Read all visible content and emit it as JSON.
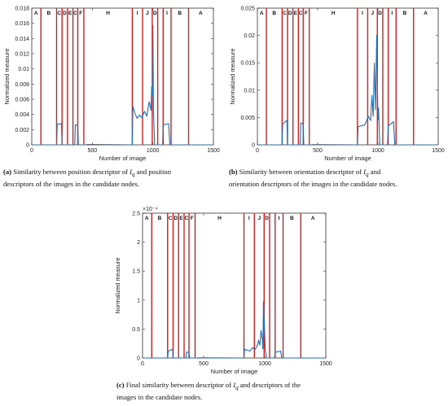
{
  "chart_data": [
    {
      "type": "line",
      "xlabel": "Number of image",
      "ylabel": "Normalized measure",
      "xlim": [
        0,
        1500
      ],
      "ylim": [
        0,
        0.018
      ],
      "x_ticks": [
        "0",
        "500",
        "1000",
        "1500"
      ],
      "y_ticks": [
        "0",
        "0.002",
        "0.004",
        "0.006",
        "0.008",
        "0.01",
        "0.012",
        "0.014",
        "0.016",
        "0.018"
      ],
      "y_exponent": "",
      "boundaries": [
        75,
        205,
        250,
        295,
        340,
        380,
        430,
        830,
        915,
        995,
        1040,
        1085,
        1150,
        1295
      ],
      "segment_labels": [
        "A",
        "B",
        "C",
        "D",
        "E",
        "C",
        "F",
        "H",
        "I",
        "J",
        "D",
        "I",
        "B",
        "A"
      ],
      "segment_centers": [
        35,
        140,
        227,
        272,
        317,
        360,
        405,
        630,
        872,
        955,
        1017,
        1117,
        1222,
        1395
      ],
      "series": [
        {
          "color": "#1f6fb8",
          "x": [
            0,
            205,
            210,
            245,
            250,
            355,
            360,
            380,
            385,
            445,
            460,
            830,
            835,
            850,
            870,
            890,
            910,
            930,
            950,
            970,
            985,
            990,
            995,
            1000,
            1005,
            1015,
            1040,
            1080,
            1085,
            1130,
            1140,
            1200,
            1500
          ],
          "y": [
            0,
            0,
            0.0027,
            0.0028,
            0,
            0,
            0.0026,
            0.0026,
            0,
            0,
            5e-05,
            0,
            0.0051,
            0.0042,
            0.0035,
            0.0039,
            0.0036,
            0.0044,
            0.0038,
            0.0057,
            0.0045,
            0.0077,
            0.0065,
            0.0158,
            0.0045,
            0,
            0,
            0,
            0.0026,
            0.0028,
            0,
            0,
            0
          ]
        }
      ]
    },
    {
      "type": "line",
      "xlabel": "Number of image",
      "ylabel": "Normalized measure",
      "xlim": [
        0,
        1500
      ],
      "ylim": [
        0,
        0.025
      ],
      "x_ticks": [
        "0",
        "500",
        "1000",
        "1500"
      ],
      "y_ticks": [
        "0",
        "0.005",
        "0.01",
        "0.015",
        "0.02",
        "0.025"
      ],
      "y_exponent": "",
      "boundaries": [
        75,
        205,
        250,
        295,
        340,
        380,
        430,
        830,
        915,
        995,
        1040,
        1085,
        1150,
        1295
      ],
      "segment_labels": [
        "A",
        "B",
        "C",
        "D",
        "E",
        "C",
        "F",
        "H",
        "I",
        "J",
        "D",
        "I",
        "B",
        "A"
      ],
      "segment_centers": [
        35,
        140,
        227,
        272,
        317,
        360,
        405,
        630,
        872,
        955,
        1017,
        1117,
        1222,
        1395
      ],
      "series": [
        {
          "color": "#1f6fb8",
          "x": [
            0,
            205,
            210,
            245,
            250,
            355,
            360,
            380,
            385,
            445,
            460,
            830,
            835,
            860,
            890,
            920,
            940,
            950,
            960,
            970,
            980,
            990,
            1000,
            1005,
            1015,
            1040,
            1080,
            1085,
            1130,
            1140,
            1200,
            1500
          ],
          "y": [
            0,
            0,
            0.0038,
            0.0045,
            0,
            0,
            0.004,
            0.0038,
            0,
            0,
            5e-05,
            0,
            0.0033,
            0.0035,
            0.0036,
            0.0052,
            0.0045,
            0.0091,
            0.0052,
            0.015,
            0.0064,
            0.0201,
            0.0045,
            0.0068,
            0,
            0,
            0,
            0.0035,
            0.0042,
            0,
            0,
            0
          ]
        }
      ]
    },
    {
      "type": "line",
      "xlabel": "Number of image",
      "ylabel": "Normalized measure",
      "xlim": [
        0,
        1500
      ],
      "ylim": [
        0,
        2.5
      ],
      "x_ticks": [
        "0",
        "500",
        "1000",
        "1500"
      ],
      "y_ticks": [
        "0",
        "0.5",
        "1",
        "1.5",
        "2",
        "2.5"
      ],
      "y_exponent": "×10⁻⁴",
      "boundaries": [
        75,
        205,
        250,
        295,
        340,
        380,
        430,
        830,
        915,
        995,
        1040,
        1085,
        1150,
        1295
      ],
      "segment_labels": [
        "A",
        "B",
        "C",
        "D",
        "E",
        "C",
        "F",
        "H",
        "I",
        "J",
        "D",
        "I",
        "B",
        "A"
      ],
      "segment_centers": [
        35,
        140,
        227,
        272,
        317,
        360,
        405,
        630,
        872,
        955,
        1017,
        1117,
        1222,
        1395
      ],
      "series": [
        {
          "color": "#1f6fb8",
          "x": [
            0,
            205,
            210,
            245,
            250,
            355,
            360,
            380,
            385,
            445,
            460,
            830,
            835,
            880,
            900,
            920,
            940,
            950,
            960,
            970,
            980,
            985,
            990,
            1000,
            1005,
            1015,
            1040,
            1080,
            1085,
            1130,
            1140,
            1200,
            1500
          ],
          "y": [
            0,
            0,
            0.12,
            0.15,
            0,
            0,
            0.1,
            0.1,
            0,
            0,
            0.003,
            0,
            0.15,
            0.12,
            0.18,
            0.14,
            0.22,
            0.3,
            0.22,
            0.48,
            0.32,
            0.15,
            0.98,
            0.4,
            0.12,
            0,
            0,
            0,
            0.1,
            0.12,
            0,
            0,
            0
          ]
        }
      ]
    }
  ],
  "captions": [
    {
      "tag": "(a)",
      "line1": "Similarity between position descriptor of ",
      "var": "I",
      "sub": "q",
      "line1b": " and position",
      "line2": "descriptors of the images in the candidate nodes."
    },
    {
      "tag": "(b)",
      "line1": "Similarity between orientation descriptor of ",
      "var": "I",
      "sub": "q",
      "line1b": " and",
      "line2": "orientation descriptors of the images in the candidate nodes."
    },
    {
      "tag": "(c)",
      "line1": "Final similarity between descriptor of ",
      "var": "I",
      "sub": "q",
      "line1b": " and descriptors of the",
      "line2": "images in the candidate nodes."
    }
  ]
}
